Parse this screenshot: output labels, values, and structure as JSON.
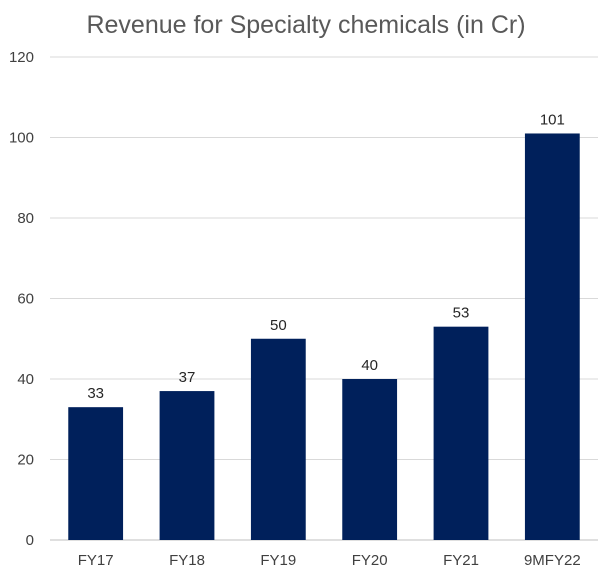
{
  "chart_data": {
    "type": "bar",
    "title": "Revenue for Specialty chemicals (in Cr)",
    "categories": [
      "FY17",
      "FY18",
      "FY19",
      "FY20",
      "FY21",
      "9MFY22"
    ],
    "values": [
      33,
      37,
      50,
      40,
      53,
      101
    ],
    "ylim": [
      0,
      120
    ],
    "yticks": [
      0,
      20,
      40,
      60,
      80,
      100,
      120
    ],
    "grid": true,
    "data_labels": true,
    "bar_color": "#00205b"
  }
}
